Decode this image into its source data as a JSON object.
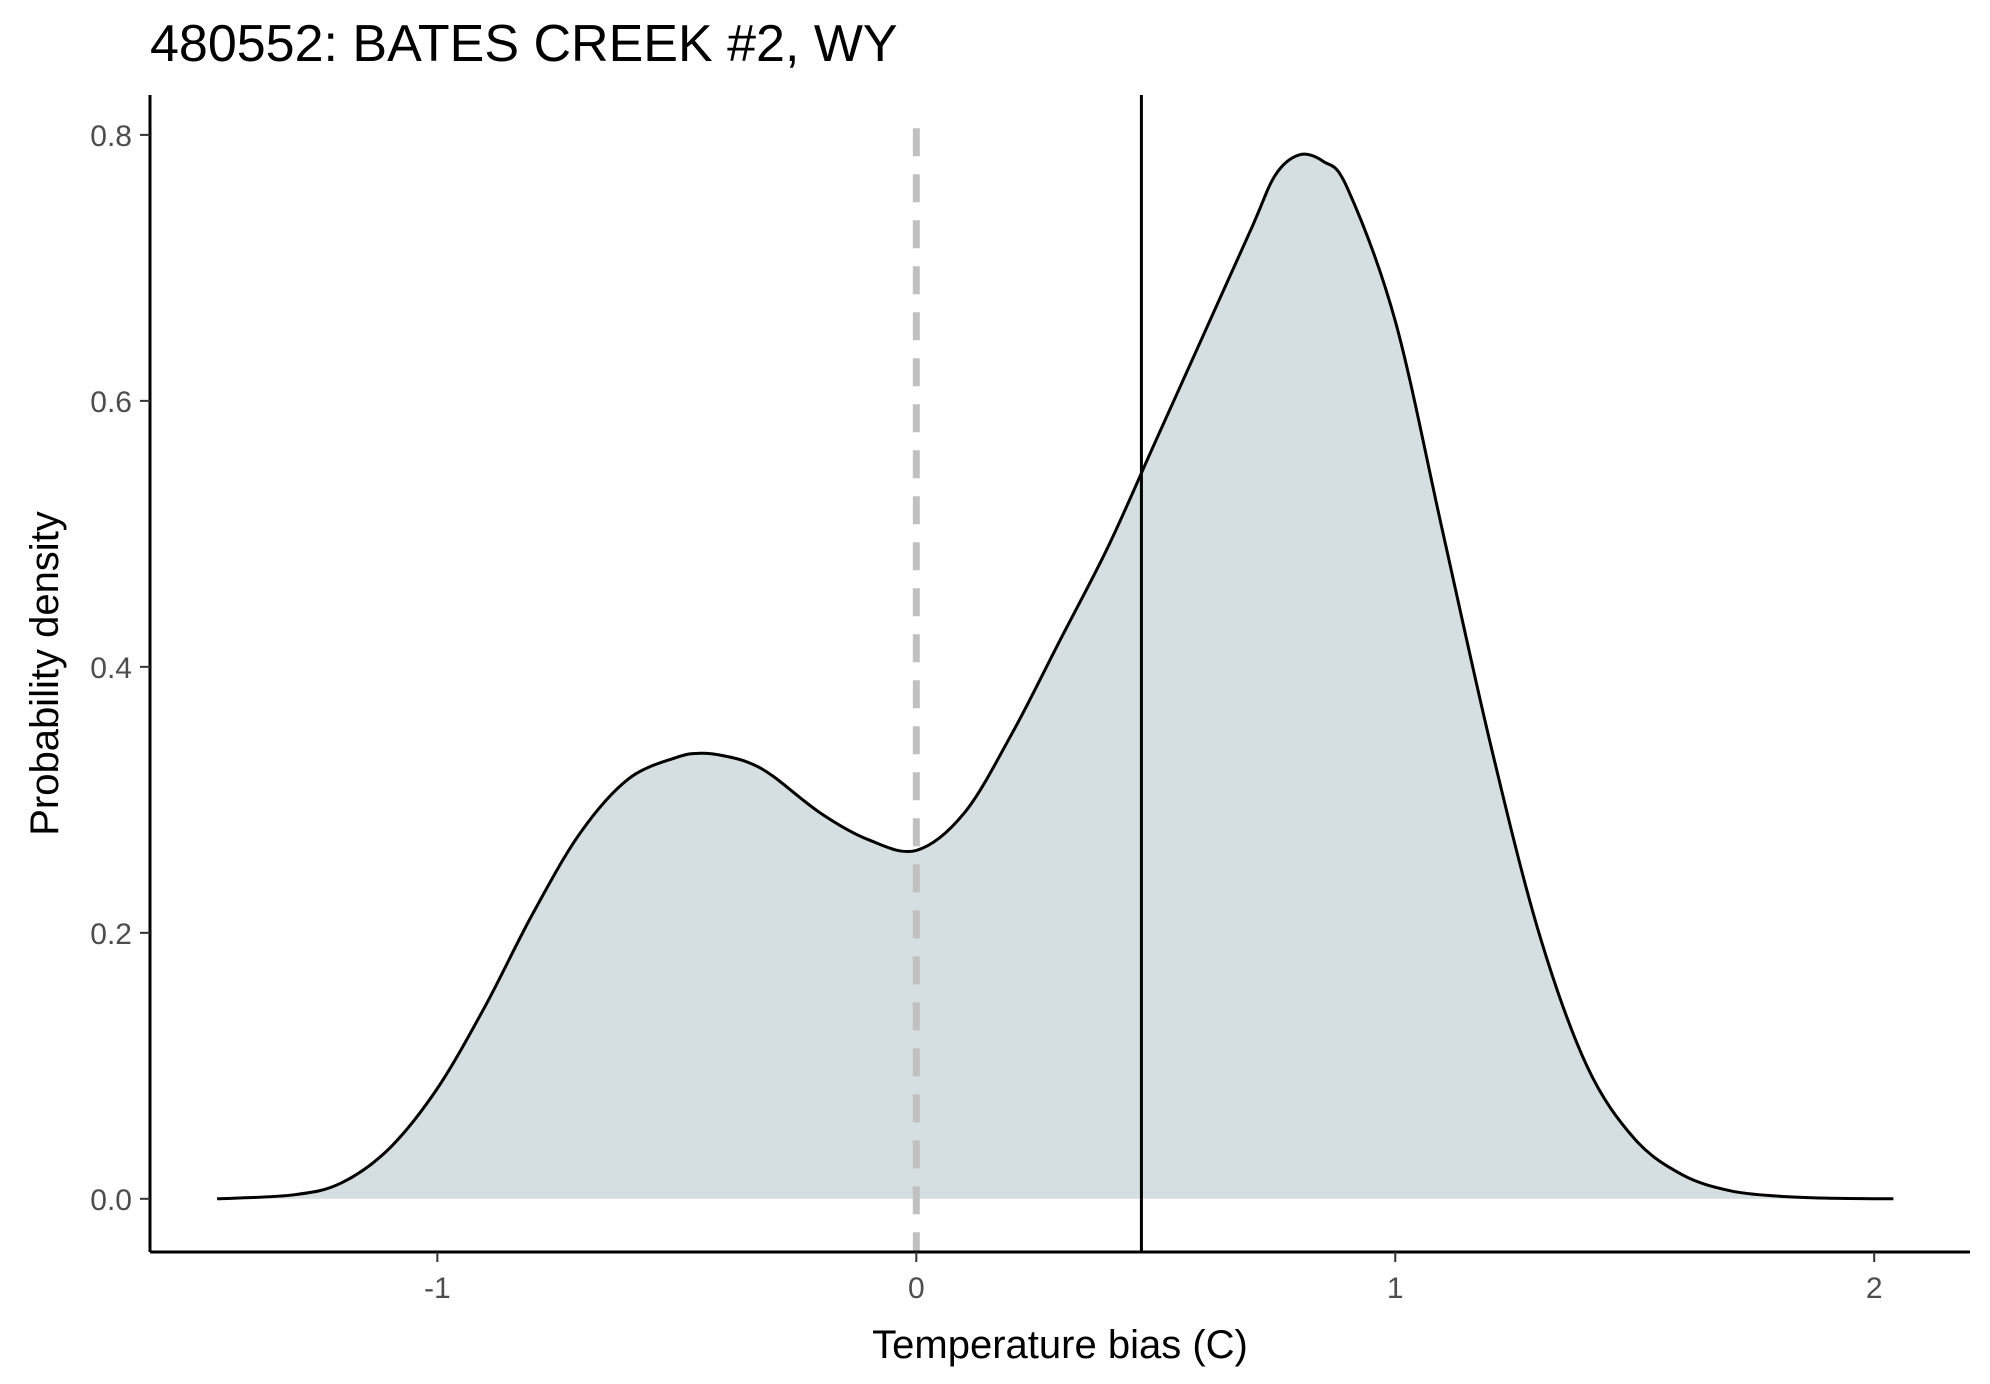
{
  "chart_data": {
    "type": "area",
    "title": "480552: BATES CREEK #2, WY",
    "xlabel": "Temperature bias (C)",
    "ylabel": "Probability density",
    "xlim": [
      -1.6,
      2.2
    ],
    "ylim": [
      -0.04,
      0.83
    ],
    "x_ticks": [
      {
        "value": -1,
        "label": "-1"
      },
      {
        "value": 0,
        "label": "0"
      },
      {
        "value": 1,
        "label": "1"
      },
      {
        "value": 2,
        "label": "2"
      }
    ],
    "y_ticks": [
      {
        "value": 0.0,
        "label": "0.0"
      },
      {
        "value": 0.2,
        "label": "0.2"
      },
      {
        "value": 0.4,
        "label": "0.4"
      },
      {
        "value": 0.6,
        "label": "0.6"
      },
      {
        "value": 0.8,
        "label": "0.8"
      }
    ],
    "grid": false,
    "legend": "none",
    "fill_color": "#d5dee0",
    "line_color": "#000000",
    "reference_lines": [
      {
        "x": 0,
        "style": "dashed",
        "color": "#c0c0c0"
      },
      {
        "x": 0.47,
        "style": "solid",
        "color": "#000000"
      }
    ],
    "series": [
      {
        "x": [
          -1.46,
          -1.3,
          -1.2,
          -1.1,
          -1.0,
          -0.9,
          -0.8,
          -0.7,
          -0.6,
          -0.5,
          -0.45,
          -0.4,
          -0.35,
          -0.3,
          -0.2,
          -0.1,
          0.0,
          0.1,
          0.2,
          0.3,
          0.4,
          0.5,
          0.6,
          0.7,
          0.75,
          0.8,
          0.85,
          0.9,
          1.0,
          1.1,
          1.2,
          1.3,
          1.4,
          1.5,
          1.6,
          1.7,
          1.8,
          1.9,
          2.04
        ],
        "y": [
          0.0,
          0.003,
          0.012,
          0.038,
          0.083,
          0.145,
          0.215,
          0.276,
          0.316,
          0.332,
          0.335,
          0.333,
          0.328,
          0.318,
          0.29,
          0.27,
          0.262,
          0.29,
          0.35,
          0.42,
          0.49,
          0.57,
          0.65,
          0.73,
          0.77,
          0.785,
          0.78,
          0.76,
          0.66,
          0.5,
          0.34,
          0.2,
          0.1,
          0.045,
          0.018,
          0.006,
          0.002,
          0.0005,
          0.0
        ]
      }
    ]
  }
}
